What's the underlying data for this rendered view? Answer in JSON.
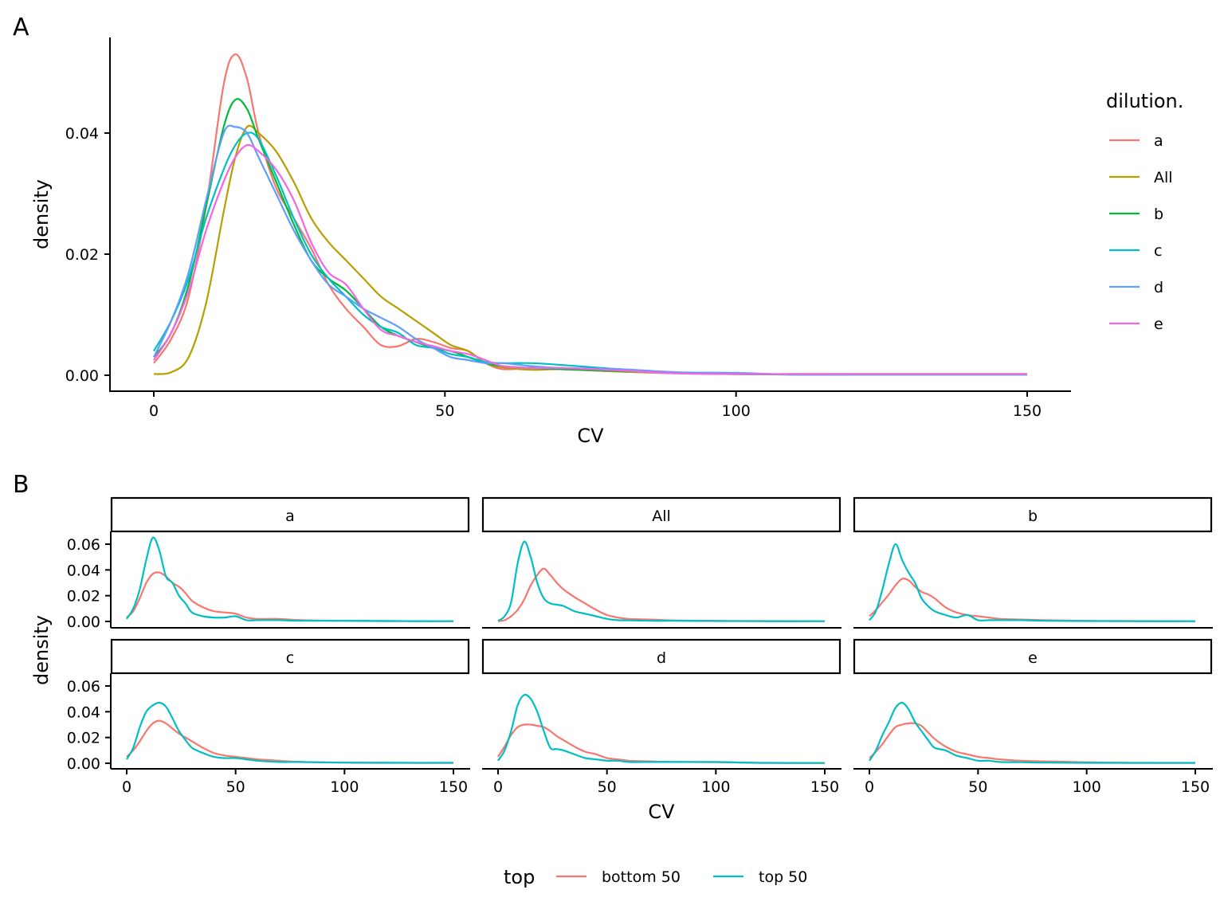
{
  "chart_data": [
    {
      "panel_label": "A",
      "type": "line",
      "xlabel": "CV",
      "ylabel": "density",
      "xlim": [
        0,
        150
      ],
      "ylim": [
        0,
        0.055
      ],
      "xticks": [
        "0",
        "50",
        "100",
        "150"
      ],
      "yticks": [
        "0.00",
        "0.02",
        "0.04"
      ],
      "grid": false,
      "legend": {
        "title": "dilution.",
        "placement": "right"
      },
      "x": [
        0,
        3,
        6,
        9,
        12,
        14,
        16,
        18,
        21,
        24,
        27,
        30,
        33,
        36,
        39,
        42,
        45,
        48,
        51,
        54,
        57,
        60,
        65,
        70,
        80,
        90,
        100,
        110,
        120,
        130,
        140,
        150
      ],
      "series": [
        {
          "name": "a",
          "color": "#F8766D",
          "values": [
            0.002,
            0.006,
            0.013,
            0.028,
            0.048,
            0.053,
            0.049,
            0.04,
            0.031,
            0.026,
            0.021,
            0.015,
            0.011,
            0.008,
            0.005,
            0.0048,
            0.006,
            0.0055,
            0.0045,
            0.004,
            0.002,
            0.001,
            0.0012,
            0.001,
            0.0006,
            0.0003,
            0.0002,
            0.0002,
            0.0002,
            0.0002,
            0.0002,
            0.0002
          ]
        },
        {
          "name": "All",
          "color": "#B79F00",
          "values": [
            0.0002,
            0.0005,
            0.003,
            0.012,
            0.027,
            0.036,
            0.041,
            0.04,
            0.037,
            0.032,
            0.026,
            0.022,
            0.019,
            0.016,
            0.013,
            0.011,
            0.009,
            0.007,
            0.005,
            0.004,
            0.002,
            0.0013,
            0.0009,
            0.001,
            0.0006,
            0.0004,
            0.0002,
            0.0002,
            0.0002,
            0.0002,
            0.0002,
            0.0002
          ]
        },
        {
          "name": "b",
          "color": "#00BA38",
          "values": [
            0.003,
            0.007,
            0.015,
            0.028,
            0.041,
            0.0455,
            0.044,
            0.039,
            0.032,
            0.025,
            0.019,
            0.016,
            0.014,
            0.011,
            0.008,
            0.0065,
            0.0055,
            0.0045,
            0.004,
            0.003,
            0.002,
            0.0015,
            0.0012,
            0.001,
            0.0007,
            0.0004,
            0.0002,
            0.0001,
            0.0001,
            0.0001,
            0.0001,
            0.0001
          ]
        },
        {
          "name": "c",
          "color": "#00BFC4",
          "values": [
            0.004,
            0.009,
            0.016,
            0.026,
            0.034,
            0.038,
            0.04,
            0.039,
            0.033,
            0.026,
            0.02,
            0.016,
            0.013,
            0.01,
            0.008,
            0.007,
            0.005,
            0.0045,
            0.0035,
            0.003,
            0.0022,
            0.002,
            0.002,
            0.0017,
            0.001,
            0.0004,
            0.0003,
            0.0001,
            0.0001,
            0.0001,
            0.0001,
            0.0001
          ]
        },
        {
          "name": "d",
          "color": "#619CFF",
          "values": [
            0.003,
            0.009,
            0.017,
            0.029,
            0.04,
            0.041,
            0.04,
            0.036,
            0.03,
            0.024,
            0.019,
            0.015,
            0.013,
            0.011,
            0.0095,
            0.008,
            0.006,
            0.0045,
            0.003,
            0.0025,
            0.002,
            0.002,
            0.0015,
            0.0012,
            0.001,
            0.0005,
            0.0004,
            0.0001,
            0.0001,
            0.0001,
            0.0001,
            0.0001
          ]
        },
        {
          "name": "e",
          "color": "#F564E3",
          "values": [
            0.0025,
            0.007,
            0.014,
            0.024,
            0.032,
            0.036,
            0.038,
            0.037,
            0.034,
            0.029,
            0.022,
            0.017,
            0.015,
            0.011,
            0.0075,
            0.0065,
            0.0055,
            0.0048,
            0.004,
            0.0035,
            0.0025,
            0.0015,
            0.0012,
            0.0012,
            0.0008,
            0.0003,
            0.0002,
            0.0002,
            0.0002,
            0.0002,
            0.0002,
            0.0002
          ]
        }
      ]
    },
    {
      "panel_label": "B",
      "type": "line",
      "xlabel": "CV",
      "ylabel": "density",
      "xlim": [
        0,
        150
      ],
      "ylim": [
        0,
        0.068
      ],
      "xticks": [
        "0",
        "50",
        "100",
        "150"
      ],
      "yticks": [
        "0.00",
        "0.02",
        "0.04",
        "0.06"
      ],
      "grid": false,
      "legend": {
        "title": "top",
        "placement": "bottom",
        "entries": [
          {
            "name": "bottom 50",
            "color": "#F8766D"
          },
          {
            "name": "top 50",
            "color": "#00BFC4"
          }
        ]
      },
      "x": [
        0,
        3,
        6,
        9,
        12,
        15,
        18,
        21,
        24,
        27,
        30,
        35,
        40,
        45,
        50,
        55,
        60,
        70,
        80,
        100,
        120,
        150
      ],
      "facets": [
        {
          "label": "a",
          "bottom_50": [
            0.003,
            0.008,
            0.018,
            0.03,
            0.037,
            0.038,
            0.035,
            0.03,
            0.027,
            0.022,
            0.016,
            0.011,
            0.008,
            0.007,
            0.006,
            0.003,
            0.002,
            0.002,
            0.001,
            0.0005,
            0.0003,
            0.0002
          ],
          "top_50": [
            0.002,
            0.01,
            0.025,
            0.048,
            0.065,
            0.055,
            0.035,
            0.03,
            0.02,
            0.014,
            0.007,
            0.004,
            0.003,
            0.003,
            0.004,
            0.001,
            0.001,
            0.001,
            0.0005,
            0.0005,
            0.0003,
            0.0002
          ]
        },
        {
          "label": "All",
          "bottom_50": [
            0.0002,
            0.001,
            0.004,
            0.009,
            0.017,
            0.028,
            0.036,
            0.041,
            0.036,
            0.03,
            0.025,
            0.019,
            0.014,
            0.009,
            0.005,
            0.003,
            0.002,
            0.0015,
            0.0008,
            0.0005,
            0.0003,
            0.0002
          ],
          "top_50": [
            0.0005,
            0.004,
            0.015,
            0.045,
            0.062,
            0.05,
            0.03,
            0.018,
            0.014,
            0.013,
            0.012,
            0.008,
            0.006,
            0.004,
            0.002,
            0.001,
            0.0008,
            0.0005,
            0.0005,
            0.0003,
            0.0002,
            0.0002
          ]
        },
        {
          "label": "b",
          "bottom_50": [
            0.004,
            0.009,
            0.015,
            0.021,
            0.028,
            0.033,
            0.032,
            0.027,
            0.023,
            0.021,
            0.018,
            0.011,
            0.007,
            0.005,
            0.004,
            0.003,
            0.002,
            0.0015,
            0.001,
            0.0005,
            0.0003,
            0.0002
          ],
          "top_50": [
            0.001,
            0.008,
            0.025,
            0.045,
            0.06,
            0.048,
            0.038,
            0.03,
            0.018,
            0.012,
            0.008,
            0.005,
            0.003,
            0.005,
            0.001,
            0.001,
            0.001,
            0.001,
            0.0005,
            0.0003,
            0.0002,
            0.0002
          ]
        },
        {
          "label": "c",
          "bottom_50": [
            0.005,
            0.01,
            0.017,
            0.025,
            0.031,
            0.033,
            0.031,
            0.027,
            0.023,
            0.02,
            0.017,
            0.012,
            0.008,
            0.006,
            0.005,
            0.004,
            0.003,
            0.002,
            0.001,
            0.0005,
            0.0003,
            0.0002
          ],
          "top_50": [
            0.003,
            0.012,
            0.028,
            0.04,
            0.045,
            0.047,
            0.044,
            0.035,
            0.025,
            0.018,
            0.012,
            0.008,
            0.005,
            0.004,
            0.004,
            0.003,
            0.002,
            0.001,
            0.001,
            0.0005,
            0.0004,
            0.0004
          ]
        },
        {
          "label": "d",
          "bottom_50": [
            0.005,
            0.013,
            0.022,
            0.028,
            0.03,
            0.03,
            0.029,
            0.028,
            0.025,
            0.021,
            0.018,
            0.013,
            0.009,
            0.007,
            0.004,
            0.003,
            0.002,
            0.0015,
            0.001,
            0.0008,
            0.0003,
            0.0002
          ],
          "top_50": [
            0.002,
            0.01,
            0.025,
            0.045,
            0.053,
            0.05,
            0.04,
            0.025,
            0.012,
            0.011,
            0.01,
            0.007,
            0.004,
            0.003,
            0.002,
            0.002,
            0.001,
            0.001,
            0.001,
            0.001,
            0.0003,
            0.0002
          ]
        },
        {
          "label": "e",
          "bottom_50": [
            0.004,
            0.009,
            0.015,
            0.022,
            0.028,
            0.03,
            0.031,
            0.031,
            0.029,
            0.024,
            0.019,
            0.013,
            0.009,
            0.007,
            0.005,
            0.004,
            0.003,
            0.002,
            0.0015,
            0.0008,
            0.0003,
            0.0002
          ],
          "top_50": [
            0.002,
            0.01,
            0.022,
            0.032,
            0.043,
            0.047,
            0.042,
            0.032,
            0.025,
            0.018,
            0.012,
            0.01,
            0.006,
            0.004,
            0.002,
            0.002,
            0.001,
            0.0008,
            0.0005,
            0.0003,
            0.0003,
            0.0003
          ]
        }
      ]
    }
  ]
}
